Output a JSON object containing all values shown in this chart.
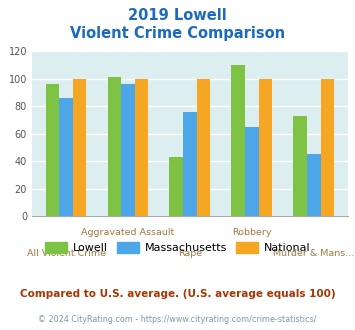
{
  "title_line1": "2019 Lowell",
  "title_line2": "Violent Crime Comparison",
  "categories": [
    "All Violent Crime",
    "Aggravated Assault",
    "Rape",
    "Robbery",
    "Murder & Mans..."
  ],
  "lowell": [
    96,
    101,
    43,
    110,
    73
  ],
  "massachusetts": [
    86,
    96,
    76,
    65,
    45
  ],
  "national": [
    100,
    100,
    100,
    100,
    100
  ],
  "color_lowell": "#7dc242",
  "color_mass": "#4da6e8",
  "color_national": "#f5a623",
  "ylim": [
    0,
    120
  ],
  "yticks": [
    0,
    20,
    40,
    60,
    80,
    100,
    120
  ],
  "bg_color": "#ddeef0",
  "title_color": "#1a6abf",
  "xlabel_color": "#a07840",
  "legend_label_lowell": "Lowell",
  "legend_label_mass": "Massachusetts",
  "legend_label_national": "National",
  "footnote1": "Compared to U.S. average. (U.S. average equals 100)",
  "footnote2": "© 2024 CityRating.com - https://www.cityrating.com/crime-statistics/",
  "footnote1_color": "#aa3300",
  "footnote2_color": "#7a9ab0",
  "bar_width": 0.22
}
